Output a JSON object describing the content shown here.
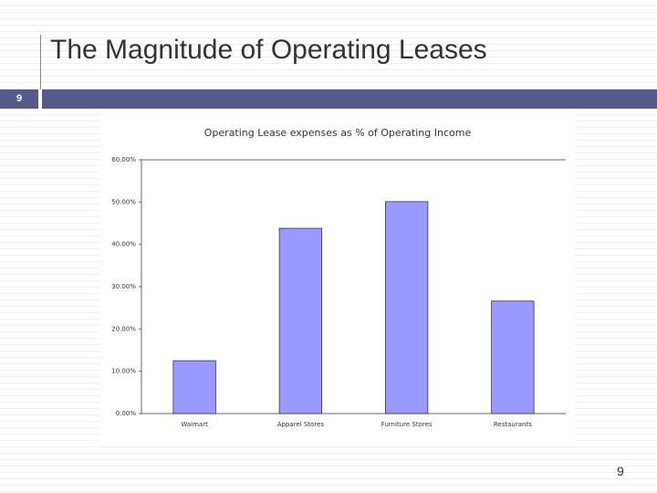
{
  "slide": {
    "title": "The Magnitude of Operating Leases",
    "section_number": "9",
    "page_number": "9"
  },
  "chart_data": {
    "type": "bar",
    "title": "Operating Lease expenses as % of Operating Income",
    "categories": [
      "Walmart",
      "Apparel Stores",
      "Furniture Stores",
      "Restaurants"
    ],
    "values": [
      12.5,
      43.8,
      50.1,
      26.6
    ],
    "color": "#9999ff",
    "ylim": [
      0,
      60
    ],
    "yticks": [
      {
        "value": 0,
        "label": "0.00%"
      },
      {
        "value": 10,
        "label": "10.00%"
      },
      {
        "value": 20,
        "label": "20.00%"
      },
      {
        "value": 30,
        "label": "30.00%"
      },
      {
        "value": 40,
        "label": "40.00%"
      },
      {
        "value": 50,
        "label": "50.00%"
      },
      {
        "value": 60,
        "label": "60.00%"
      }
    ],
    "grid": false
  }
}
